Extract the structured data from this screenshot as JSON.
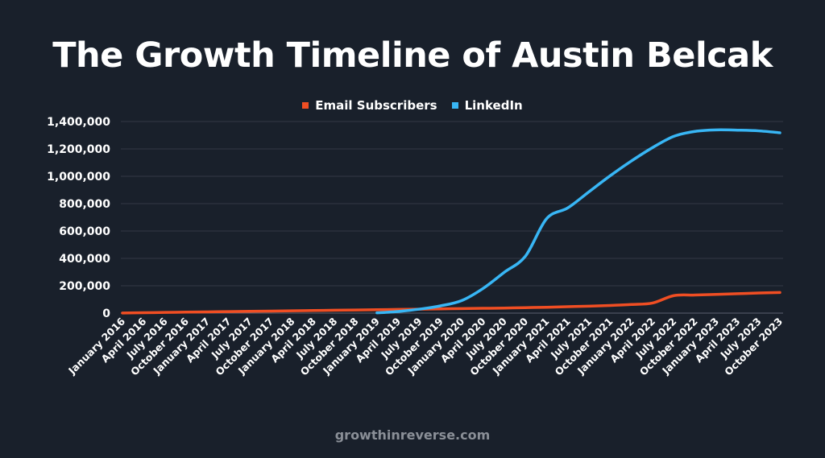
{
  "title": "The Growth Timeline of Austin Belcak",
  "footer": "growthinreverse.com",
  "chart_data": {
    "type": "line",
    "title": "The Growth Timeline of Austin Belcak",
    "legend_position": "top",
    "grid": true,
    "ylim": [
      0,
      1400000
    ],
    "yticks": [
      "0",
      "200,000",
      "400,000",
      "600,000",
      "800,000",
      "1,000,000",
      "1,200,000",
      "1,400,000"
    ],
    "categories": [
      "January 2016",
      "April 2016",
      "July 2016",
      "October 2016",
      "January 2017",
      "April 2017",
      "July 2017",
      "October 2017",
      "January 2018",
      "April 2018",
      "July 2018",
      "October 2018",
      "January 2019",
      "April 2019",
      "July 2019",
      "October 2019",
      "January 2020",
      "April 2020",
      "July 2020",
      "October 2020",
      "January 2021",
      "April 2021",
      "July 2021",
      "October 2021",
      "January 2022",
      "April 2022",
      "July 2022",
      "October 2022",
      "January 2023",
      "April 2023",
      "July 2023",
      "October 2023"
    ],
    "series": [
      {
        "name": "Email Subscribers",
        "color": "#f04e23",
        "values": [
          1000,
          3000,
          5000,
          7000,
          9000,
          11000,
          13000,
          15000,
          17000,
          19000,
          21000,
          23000,
          25000,
          27000,
          29000,
          31000,
          33000,
          35000,
          37000,
          40000,
          43000,
          47000,
          51000,
          56000,
          63000,
          74000,
          128000,
          132000,
          137000,
          142000,
          147000,
          151000
        ]
      },
      {
        "name": "LinkedIn",
        "color": "#38b6f5",
        "values": [
          null,
          null,
          null,
          null,
          null,
          null,
          null,
          null,
          null,
          null,
          null,
          null,
          2000,
          12000,
          29000,
          53000,
          92000,
          180000,
          298000,
          416000,
          690000,
          769000,
          887000,
          1004000,
          1112000,
          1210000,
          1292000,
          1328000,
          1339000,
          1337000,
          1332000,
          1318000
        ]
      }
    ]
  }
}
